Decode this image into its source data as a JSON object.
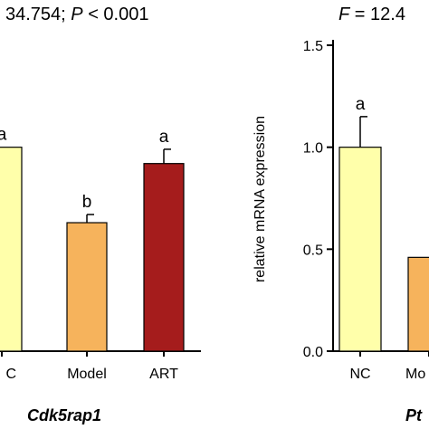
{
  "chart_data": [
    {
      "type": "bar",
      "stat_parts": [
        "34.754; ",
        "P",
        " < 0.001"
      ],
      "gene": "Cdk5rap1",
      "ylabel": "",
      "ylim": [
        0,
        1.5
      ],
      "categories": [
        "C",
        "Model",
        "ART"
      ],
      "values": [
        1.0,
        0.63,
        0.92
      ],
      "errors": [
        0.0,
        0.04,
        0.07
      ],
      "letters": [
        "a",
        "b",
        "a"
      ],
      "colors": [
        "#ffffaa",
        "#f6b35c",
        "#a51c1c"
      ]
    },
    {
      "type": "bar",
      "stat_parts": [
        "F",
        " = 12.4"
      ],
      "gene": "Pt",
      "ylabel": "relative mRNA expression",
      "ylim": [
        0,
        1.5
      ],
      "yticks": [
        "0.0",
        "0.5",
        "1.0",
        "1.5"
      ],
      "categories": [
        "NC",
        "Mo"
      ],
      "values": [
        1.0,
        0.46
      ],
      "errors": [
        0.15,
        0.0
      ],
      "letters": [
        "a",
        ""
      ],
      "colors": [
        "#ffffaa",
        "#f6b35c"
      ]
    }
  ]
}
